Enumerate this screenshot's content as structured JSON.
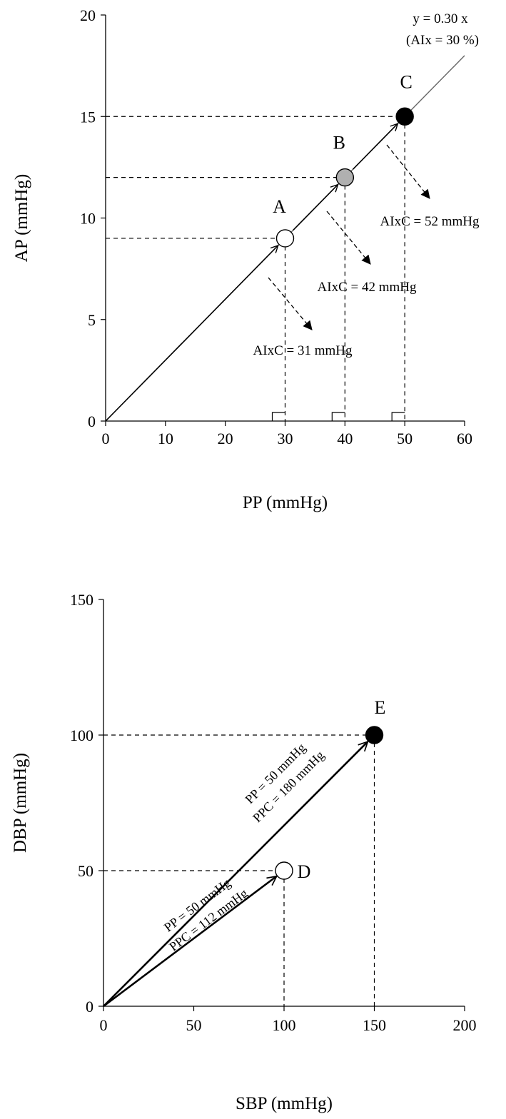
{
  "chart_data": [
    {
      "type": "scatter",
      "xlabel": "PP (mmHg)",
      "ylabel": "AP (mmHg)",
      "xlim": [
        0,
        60
      ],
      "ylim": [
        0,
        20
      ],
      "x_ticks": [
        "0",
        "10",
        "20",
        "30",
        "40",
        "50",
        "60"
      ],
      "y_ticks": [
        "0",
        "5",
        "10",
        "15",
        "20"
      ],
      "grid": false,
      "line": {
        "label_line1": "y = 0.30 x",
        "label_line2": "(AIx = 30 %)",
        "slope": 0.3,
        "x_range": [
          0,
          60
        ]
      },
      "points": [
        {
          "label": "A",
          "x": 30,
          "y": 9,
          "fill": "#ffffff",
          "annotation": "AIxC = 31 mmHg"
        },
        {
          "label": "B",
          "x": 40,
          "y": 12,
          "fill": "#b0b0b0",
          "annotation": "AIxC = 42 mmHg"
        },
        {
          "label": "C",
          "x": 50,
          "y": 15,
          "fill": "#000000",
          "annotation": "AIxC = 52 mmHg"
        }
      ]
    },
    {
      "type": "scatter",
      "xlabel": "SBP (mmHg)",
      "ylabel": "DBP (mmHg)",
      "xlim": [
        0,
        200
      ],
      "ylim": [
        0,
        150
      ],
      "x_ticks": [
        "0",
        "50",
        "100",
        "150",
        "200"
      ],
      "y_ticks": [
        "0",
        "50",
        "100",
        "150"
      ],
      "grid": false,
      "points": [
        {
          "label": "D",
          "x": 100,
          "y": 50,
          "fill": "#ffffff",
          "note_line1": "PP = 50 mmHg",
          "note_line2": "PPC = 112 mmHg"
        },
        {
          "label": "E",
          "x": 150,
          "y": 100,
          "fill": "#000000",
          "note_line1": "PP = 50 mmHg",
          "note_line2": "PPC = 180 mmHg"
        }
      ]
    }
  ]
}
